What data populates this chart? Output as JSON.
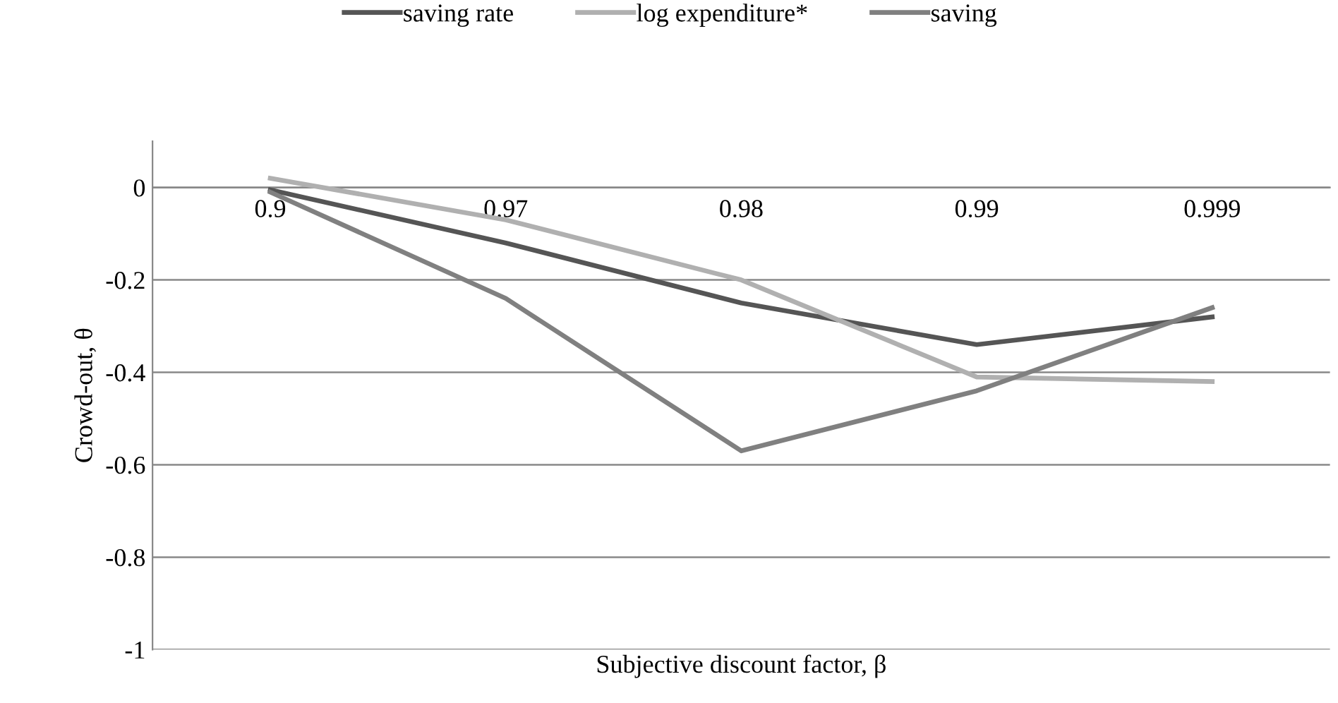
{
  "chart_data": {
    "type": "line",
    "xlabel": "Subjective discount factor, β",
    "ylabel": "Crowd-out, θ",
    "categories": [
      "0.9",
      "0.97",
      "0.98",
      "0.99",
      "0.999"
    ],
    "series": [
      {
        "name": "saving rate",
        "color": "#555555",
        "values": [
          -0.005,
          -0.12,
          -0.25,
          -0.34,
          -0.28
        ]
      },
      {
        "name": "log expenditure*",
        "color": "#b0b0b0",
        "values": [
          0.02,
          -0.07,
          -0.2,
          -0.41,
          -0.42
        ]
      },
      {
        "name": "saving",
        "color": "#808080",
        "values": [
          -0.01,
          -0.24,
          -0.57,
          -0.44,
          -0.26
        ]
      }
    ],
    "ylim": [
      -1,
      0.1
    ],
    "yticks": [
      {
        "value": 0,
        "label": "0"
      },
      -0.2,
      -0.4,
      -0.6,
      -0.8,
      {
        "value": -1,
        "label": "-1"
      }
    ],
    "grid": "y",
    "legend": "top",
    "marker": "none",
    "line_style": "solid"
  }
}
